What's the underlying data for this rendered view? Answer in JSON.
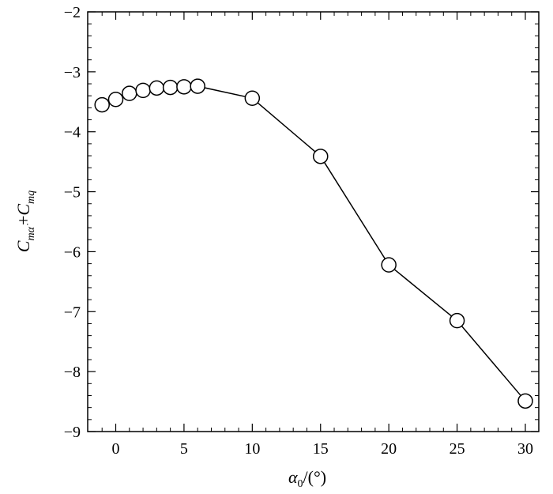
{
  "chart_data": {
    "type": "line",
    "title": "",
    "x": [
      -1,
      0,
      1,
      2,
      3,
      4,
      5,
      6,
      10,
      15,
      20,
      25,
      30
    ],
    "series": [
      {
        "values": [
          -3.55,
          -3.46,
          -3.36,
          -3.31,
          -3.27,
          -3.26,
          -3.25,
          -3.24,
          -3.44,
          -4.41,
          -6.22,
          -7.15,
          -8.49
        ]
      }
    ],
    "xlim": [
      -2,
      31
    ],
    "ylim": [
      -9,
      -2
    ],
    "xticks": [
      0,
      5,
      10,
      15,
      20,
      25,
      30
    ],
    "yticks": [
      -9,
      -8,
      -7,
      -6,
      -5,
      -4,
      -3,
      -2
    ],
    "xtick_labels": [
      "0",
      "5",
      "10",
      "15",
      "20",
      "25",
      "30"
    ],
    "ytick_labels": [
      "−9",
      "−8",
      "−7",
      "−6",
      "−5",
      "−4",
      "−3",
      "−2"
    ],
    "xlabel": {
      "symbol": "α",
      "subscript": "0",
      "suffix": "/(°)"
    },
    "ylabel": {
      "term1": "C",
      "term1_sub": "mα̇",
      "plus": "+",
      "term2": "C",
      "term2_sub": "mq"
    },
    "marker": "open-circle",
    "grid": false,
    "legend": "none"
  }
}
